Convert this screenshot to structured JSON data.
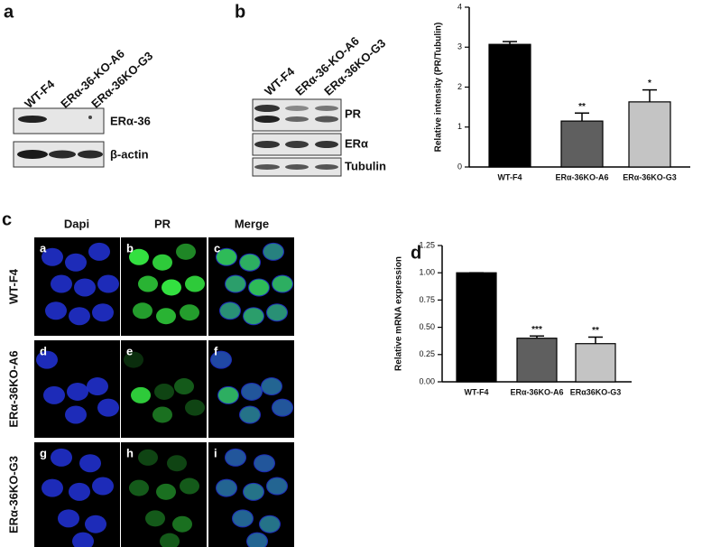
{
  "panels": {
    "a": {
      "letter": "a",
      "columns": [
        "WT-F4",
        "ERα-36-KO-A6",
        "ERα-36KO-G3"
      ],
      "rows": [
        "ERα-36",
        "β-actin"
      ]
    },
    "b": {
      "letter": "b",
      "columns": [
        "WT-F4",
        "ERα-36-KO-A6",
        "ERα-36KO-G3"
      ],
      "rows": [
        "PR",
        "ERα",
        "Tubulin"
      ]
    },
    "c": {
      "letter": "c",
      "headers": [
        "Dapi",
        "PR",
        "Merge"
      ],
      "rows": [
        "WT-F4",
        "ERα-36KO-A6",
        "ERα-36KO-G3"
      ],
      "subpanels": [
        "a",
        "b",
        "c",
        "d",
        "e",
        "f",
        "g",
        "h",
        "i"
      ]
    },
    "d": {
      "letter": "d"
    }
  },
  "chart_data": [
    {
      "type": "bar",
      "ylabel": "Relative intensity (PR/Tubulin)",
      "categories": [
        "WT-F4",
        "ERα-36KO-A6",
        "ERα-36KO-G3"
      ],
      "values": [
        3.07,
        1.15,
        1.63
      ],
      "errors": [
        0.07,
        0.2,
        0.3
      ],
      "colors": [
        "#000000",
        "#5f5f5f",
        "#c4c4c4"
      ],
      "annotations": [
        null,
        "**",
        "*"
      ],
      "ylim": [
        0,
        4
      ],
      "yticks": [
        0,
        1,
        2,
        3,
        4
      ]
    },
    {
      "type": "bar",
      "ylabel": "Relative mRNA expression",
      "categories": [
        "WT-F4",
        "ERα-36KO-A6",
        "ERα36KO-G3"
      ],
      "values": [
        1.0,
        0.4,
        0.35
      ],
      "errors": [
        0,
        0.02,
        0.06
      ],
      "colors": [
        "#000000",
        "#5f5f5f",
        "#c4c4c4"
      ],
      "annotations": [
        null,
        "***",
        "**"
      ],
      "ylim": [
        0,
        1.25
      ],
      "yticks": [
        {
          "value": 0,
          "label": "0.00"
        },
        {
          "value": 0.25,
          "label": "0.25"
        },
        {
          "value": 0.5,
          "label": "0.50"
        },
        {
          "value": 0.75,
          "label": "0.75"
        },
        {
          "value": 1,
          "label": "1.00"
        },
        {
          "value": 1.25,
          "label": "1.25"
        }
      ]
    }
  ]
}
